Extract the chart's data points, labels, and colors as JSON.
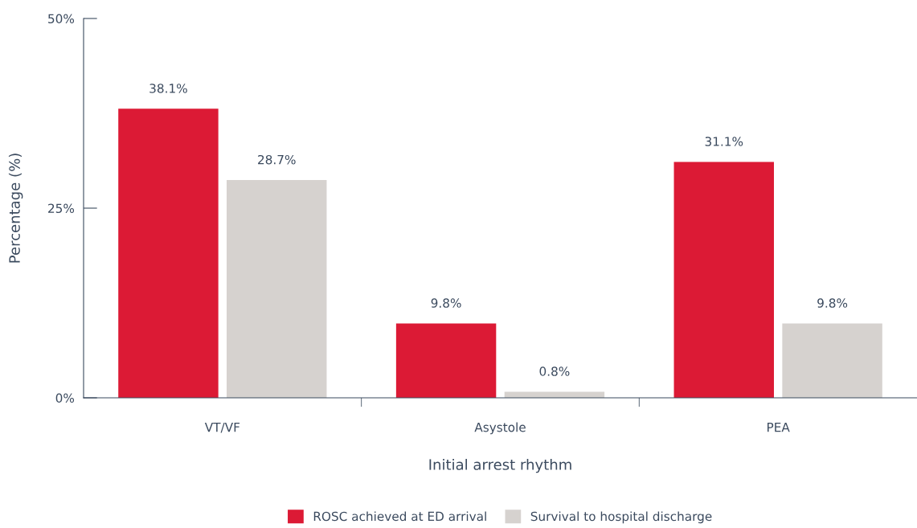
{
  "chart_data": {
    "type": "bar",
    "xlabel": "Initial arrest rhythm",
    "ylabel": "Percentage (%)",
    "categories": [
      "VT/VF",
      "Asystole",
      "PEA"
    ],
    "series": [
      {
        "name": "ROSC achieved at ED arrival",
        "color": "#dc1a35",
        "values": [
          38.1,
          9.8,
          31.1
        ],
        "value_labels": [
          "38.1%",
          "9.8%",
          "31.1%"
        ]
      },
      {
        "name": "Survival to hospital discharge",
        "color": "#d6d2cf",
        "values": [
          28.7,
          0.8,
          9.8
        ],
        "value_labels": [
          "28.7%",
          "0.8%",
          "9.8%"
        ]
      }
    ],
    "ylim": [
      0,
      50
    ],
    "yticks": [
      {
        "value": 0,
        "label": "0%"
      },
      {
        "value": 25,
        "label": "25%"
      },
      {
        "value": 50,
        "label": "50%"
      }
    ],
    "grid": false,
    "legend": "bottom"
  }
}
